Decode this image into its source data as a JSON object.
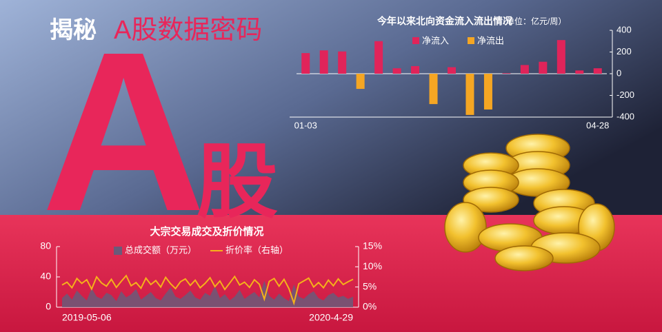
{
  "header": {
    "title_bold": "揭秘",
    "title": "A股数据密码",
    "big_letter": "A",
    "big_char": "股"
  },
  "chart_data": [
    {
      "type": "bar",
      "title": "今年以来北向资金流入流出情况",
      "subtitle": "（单位：亿元/周）",
      "categories": [
        "01-03",
        null,
        null,
        null,
        null,
        null,
        null,
        null,
        null,
        null,
        null,
        null,
        null,
        null,
        null,
        null,
        "04-28"
      ],
      "series": [
        {
          "name": "净流入",
          "color": "#e0245a",
          "values": [
            190,
            215,
            205,
            null,
            300,
            50,
            70,
            null,
            60,
            null,
            null,
            5,
            80,
            110,
            310,
            30,
            50
          ]
        },
        {
          "name": "净流出",
          "color": "#f5a623",
          "values": [
            null,
            null,
            null,
            -140,
            null,
            null,
            null,
            -280,
            null,
            -380,
            -330,
            null,
            null,
            null,
            null,
            null,
            null
          ]
        }
      ],
      "ylim": [
        -400,
        400
      ],
      "yticks": [
        -400,
        -200,
        0,
        200,
        400
      ]
    },
    {
      "type": "combo",
      "title": "大宗交易成交及折价情况",
      "categories": [
        "2019-05-06",
        null,
        null,
        null,
        null,
        null,
        null,
        null,
        null,
        null,
        null,
        null,
        null,
        null,
        null,
        null,
        null,
        null,
        null,
        null,
        null,
        null,
        null,
        null,
        null,
        null,
        null,
        null,
        null,
        null,
        null,
        null,
        null,
        null,
        null,
        null,
        null,
        null,
        null,
        null,
        null,
        null,
        null,
        null,
        null,
        null,
        null,
        null,
        null,
        null,
        null,
        null,
        null,
        null,
        null,
        null,
        null,
        null,
        null,
        "2020-4-29"
      ],
      "series": [
        {
          "name": "总成交额（万元）",
          "kind": "area",
          "color": "#6b5a7a",
          "values": [
            12,
            18,
            10,
            22,
            15,
            9,
            25,
            14,
            11,
            19,
            16,
            8,
            21,
            13,
            17,
            24,
            10,
            15,
            20,
            12,
            9,
            18,
            26,
            14,
            11,
            16,
            22,
            13,
            10,
            19,
            15,
            28,
            12,
            17,
            9,
            14,
            23,
            11,
            16,
            20,
            13,
            35,
            15,
            10,
            18,
            12,
            8,
            30,
            14,
            11,
            17,
            21,
            12,
            9,
            16,
            19,
            13,
            15,
            11,
            14
          ]
        },
        {
          "name": "折价率（右轴）",
          "kind": "line",
          "axis": "y2",
          "color": "#f5b21a",
          "values": [
            5.5,
            6.2,
            4.8,
            7.1,
            5.9,
            6.8,
            4.5,
            7.5,
            6.0,
            5.2,
            6.9,
            4.9,
            6.4,
            7.8,
            5.3,
            6.1,
            4.7,
            7.2,
            5.6,
            6.6,
            5.0,
            7.4,
            5.8,
            4.6,
            6.3,
            7.0,
            5.4,
            6.7,
            4.8,
            5.9,
            7.3,
            5.1,
            6.5,
            4.4,
            6.0,
            7.6,
            5.5,
            6.2,
            4.9,
            6.8,
            5.7,
            2.0,
            6.4,
            7.1,
            5.2,
            6.9,
            4.6,
            1.0,
            5.8,
            6.5,
            7.2,
            5.0,
            6.1,
            4.8,
            6.7,
            5.3,
            7.0,
            5.6,
            6.3,
            6.9
          ]
        }
      ],
      "ylim": [
        0,
        80
      ],
      "yticks": [
        0,
        40,
        80
      ],
      "y2lim": [
        0,
        15
      ],
      "y2ticks": [
        {
          "value": 0,
          "label": "0%"
        },
        {
          "value": 5,
          "label": "5%"
        },
        {
          "value": 10,
          "label": "10%"
        },
        {
          "value": 15,
          "label": "15%"
        }
      ]
    }
  ]
}
